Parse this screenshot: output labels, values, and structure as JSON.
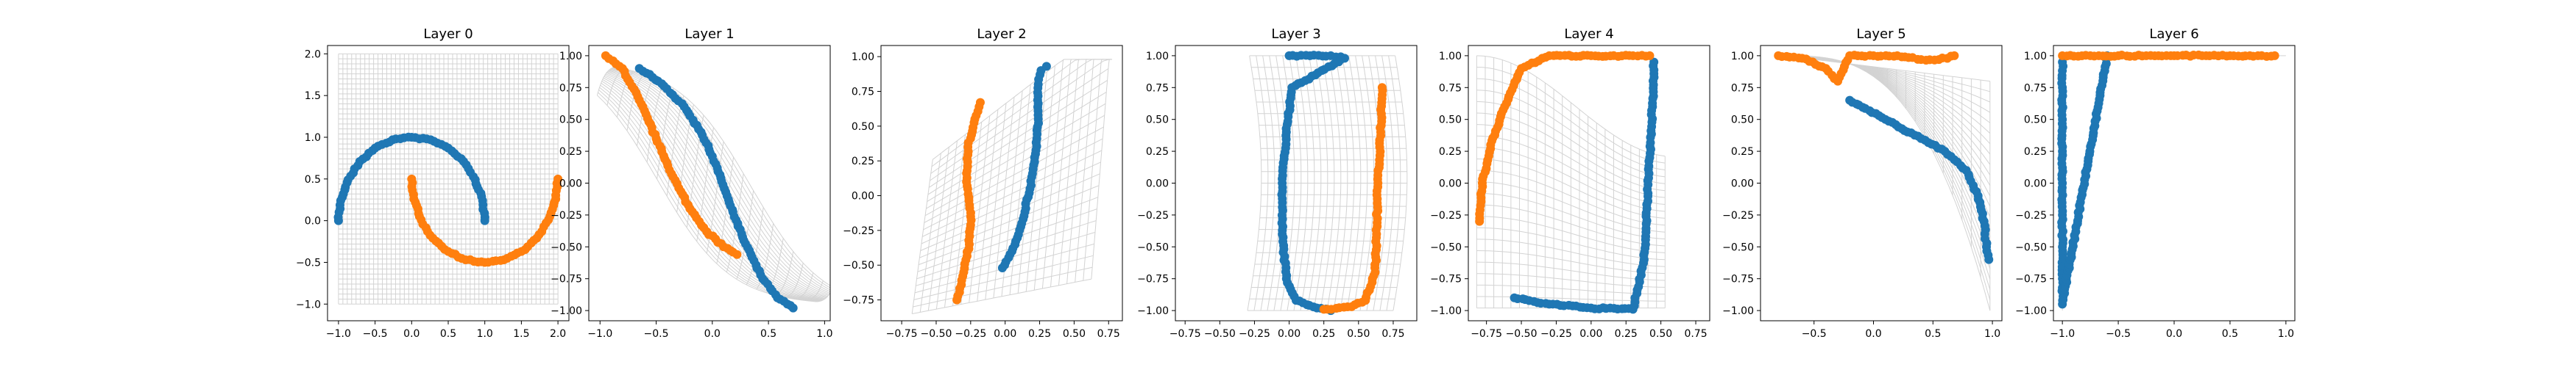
{
  "chart_data": [
    {
      "type": "scatter",
      "title": "Layer 0",
      "xlim": [
        -1.15,
        2.15
      ],
      "ylim": [
        -1.2,
        2.1
      ],
      "xticks": [
        -1.0,
        -0.5,
        0.0,
        0.5,
        1.0,
        1.5,
        2.0
      ],
      "yticks": [
        -1.0,
        -0.5,
        0.0,
        0.5,
        1.0,
        1.5,
        2.0
      ],
      "xtick_labels": [
        "−1.0",
        "−0.5",
        "0.0",
        "0.5",
        "1.0",
        "1.5",
        "2.0"
      ],
      "ytick_labels": [
        "−1.0",
        "−0.5",
        "0.0",
        "0.5",
        "1.0",
        "1.5",
        "2.0"
      ],
      "series": [
        {
          "color": "#1f77b4",
          "points": [
            [
              -1.0,
              0.0
            ],
            [
              -0.97,
              0.24
            ],
            [
              -0.87,
              0.49
            ],
            [
              -0.71,
              0.71
            ],
            [
              -0.5,
              0.87
            ],
            [
              -0.26,
              0.97
            ],
            [
              0.0,
              1.0
            ],
            [
              0.26,
              0.97
            ],
            [
              0.5,
              0.87
            ],
            [
              0.71,
              0.71
            ],
            [
              0.87,
              0.49
            ],
            [
              0.97,
              0.24
            ],
            [
              1.0,
              0.0
            ]
          ]
        },
        {
          "color": "#ff7f0e",
          "points": [
            [
              0.0,
              0.5
            ],
            [
              0.03,
              0.26
            ],
            [
              0.13,
              0.01
            ],
            [
              0.29,
              -0.21
            ],
            [
              0.5,
              -0.37
            ],
            [
              0.74,
              -0.47
            ],
            [
              1.0,
              -0.5
            ],
            [
              1.26,
              -0.47
            ],
            [
              1.5,
              -0.37
            ],
            [
              1.71,
              -0.21
            ],
            [
              1.87,
              0.01
            ],
            [
              1.97,
              0.26
            ],
            [
              2.0,
              0.5
            ]
          ]
        }
      ],
      "grid_mesh": "regular"
    },
    {
      "type": "scatter",
      "title": "Layer 1",
      "xlim": [
        -1.1,
        1.05
      ],
      "ylim": [
        -1.08,
        1.08
      ],
      "xticks": [
        -1.0,
        -0.5,
        0.0,
        0.5,
        1.0
      ],
      "yticks": [
        -1.0,
        -0.75,
        -0.5,
        -0.25,
        0.0,
        0.25,
        0.5,
        0.75,
        1.0
      ],
      "xtick_labels": [
        "−1.0",
        "−0.5",
        "0.0",
        "0.5",
        "1.0"
      ],
      "ytick_labels": [
        "−1.00",
        "−0.75",
        "−0.50",
        "−0.25",
        "0.00",
        "0.25",
        "0.50",
        "0.75",
        "1.00"
      ],
      "series": [
        {
          "color": "#1f77b4",
          "points": [
            [
              -0.65,
              0.9
            ],
            [
              -0.45,
              0.78
            ],
            [
              -0.25,
              0.6
            ],
            [
              -0.1,
              0.4
            ],
            [
              0.03,
              0.15
            ],
            [
              0.15,
              -0.15
            ],
            [
              0.28,
              -0.45
            ],
            [
              0.43,
              -0.72
            ],
            [
              0.58,
              -0.9
            ],
            [
              0.72,
              -0.98
            ]
          ]
        },
        {
          "color": "#ff7f0e",
          "points": [
            [
              -0.95,
              1.0
            ],
            [
              -0.8,
              0.9
            ],
            [
              -0.65,
              0.65
            ],
            [
              -0.5,
              0.35
            ],
            [
              -0.35,
              0.05
            ],
            [
              -0.2,
              -0.2
            ],
            [
              -0.05,
              -0.38
            ],
            [
              0.1,
              -0.5
            ],
            [
              0.22,
              -0.56
            ]
          ]
        }
      ],
      "grid_mesh": "warped"
    },
    {
      "type": "scatter",
      "title": "Layer 2",
      "xlim": [
        -0.9,
        0.85
      ],
      "ylim": [
        -0.9,
        1.08
      ],
      "xticks": [
        -0.75,
        -0.5,
        -0.25,
        0.0,
        0.25,
        0.5,
        0.75
      ],
      "yticks": [
        -0.75,
        -0.5,
        -0.25,
        0.0,
        0.25,
        0.5,
        0.75,
        1.0
      ],
      "xtick_labels": [
        "−0.75",
        "−0.50",
        "−0.25",
        "0.00",
        "0.25",
        "0.50",
        "0.75"
      ],
      "ytick_labels": [
        "−0.75",
        "−0.50",
        "−0.25",
        "0.00",
        "0.25",
        "0.50",
        "0.75",
        "1.00"
      ],
      "series": [
        {
          "color": "#1f77b4",
          "points": [
            [
              -0.02,
              -0.52
            ],
            [
              0.05,
              -0.4
            ],
            [
              0.12,
              -0.2
            ],
            [
              0.18,
              0.05
            ],
            [
              0.22,
              0.3
            ],
            [
              0.24,
              0.55
            ],
            [
              0.24,
              0.8
            ],
            [
              0.26,
              0.9
            ],
            [
              0.3,
              0.93
            ]
          ]
        },
        {
          "color": "#ff7f0e",
          "points": [
            [
              -0.18,
              0.67
            ],
            [
              -0.22,
              0.55
            ],
            [
              -0.27,
              0.35
            ],
            [
              -0.28,
              0.1
            ],
            [
              -0.25,
              -0.15
            ],
            [
              -0.26,
              -0.35
            ],
            [
              -0.3,
              -0.55
            ],
            [
              -0.35,
              -0.75
            ]
          ]
        }
      ],
      "grid_mesh": "warped"
    },
    {
      "type": "scatter",
      "title": "Layer 3",
      "xlim": [
        -0.82,
        0.92
      ],
      "ylim": [
        -1.08,
        1.08
      ],
      "xticks": [
        -0.75,
        -0.5,
        -0.25,
        0.0,
        0.25,
        0.5,
        0.75
      ],
      "yticks": [
        -1.0,
        -0.75,
        -0.5,
        -0.25,
        0.0,
        0.25,
        0.5,
        0.75,
        1.0
      ],
      "xtick_labels": [
        "−0.75",
        "−0.50",
        "−0.25",
        "0.00",
        "0.25",
        "0.50",
        "0.75"
      ],
      "ytick_labels": [
        "−1.00",
        "−0.75",
        "−0.50",
        "−0.25",
        "0.00",
        "0.25",
        "0.50",
        "0.75",
        "1.00"
      ],
      "series": [
        {
          "color": "#1f77b4",
          "points": [
            [
              0.0,
              1.0
            ],
            [
              0.15,
              1.0
            ],
            [
              0.3,
              1.0
            ],
            [
              0.4,
              0.98
            ],
            [
              0.02,
              0.75
            ],
            [
              -0.02,
              0.4
            ],
            [
              -0.05,
              0.0
            ],
            [
              -0.05,
              -0.4
            ],
            [
              -0.02,
              -0.75
            ],
            [
              0.05,
              -0.92
            ],
            [
              0.2,
              -0.98
            ],
            [
              0.3,
              -1.0
            ]
          ]
        },
        {
          "color": "#ff7f0e",
          "points": [
            [
              0.25,
              -0.99
            ],
            [
              0.45,
              -0.97
            ],
            [
              0.55,
              -0.92
            ],
            [
              0.62,
              -0.7
            ],
            [
              0.63,
              -0.4
            ],
            [
              0.64,
              0.0
            ],
            [
              0.66,
              0.4
            ],
            [
              0.67,
              0.75
            ]
          ]
        }
      ],
      "grid_mesh": "warped"
    },
    {
      "type": "scatter",
      "title": "Layer 4",
      "xlim": [
        -0.88,
        0.85
      ],
      "ylim": [
        -1.08,
        1.08
      ],
      "xticks": [
        -0.75,
        -0.5,
        -0.25,
        0.0,
        0.25,
        0.5,
        0.75
      ],
      "yticks": [
        -1.0,
        -0.75,
        -0.5,
        -0.25,
        0.0,
        0.25,
        0.5,
        0.75,
        1.0
      ],
      "xtick_labels": [
        "−0.75",
        "−0.50",
        "−0.25",
        "0.00",
        "0.25",
        "0.50",
        "0.75"
      ],
      "ytick_labels": [
        "−1.00",
        "−0.75",
        "−0.50",
        "−0.25",
        "0.00",
        "0.25",
        "0.50",
        "0.75",
        "1.00"
      ],
      "series": [
        {
          "color": "#1f77b4",
          "points": [
            [
              -0.55,
              -0.9
            ],
            [
              -0.3,
              -0.95
            ],
            [
              0.0,
              -0.98
            ],
            [
              0.3,
              -0.99
            ],
            [
              0.38,
              -0.6
            ],
            [
              0.4,
              -0.2
            ],
            [
              0.42,
              0.2
            ],
            [
              0.44,
              0.6
            ],
            [
              0.45,
              0.95
            ]
          ]
        },
        {
          "color": "#ff7f0e",
          "points": [
            [
              -0.8,
              -0.3
            ],
            [
              -0.78,
              0.0
            ],
            [
              -0.72,
              0.3
            ],
            [
              -0.62,
              0.6
            ],
            [
              -0.5,
              0.9
            ],
            [
              -0.3,
              1.0
            ],
            [
              0.0,
              1.0
            ],
            [
              0.3,
              1.0
            ],
            [
              0.42,
              1.0
            ]
          ]
        }
      ],
      "grid_mesh": "warped"
    },
    {
      "type": "scatter",
      "title": "Layer 5",
      "xlim": [
        -0.95,
        1.08
      ],
      "ylim": [
        -1.08,
        1.08
      ],
      "xticks": [
        -0.5,
        0.0,
        0.5,
        1.0
      ],
      "yticks": [
        -1.0,
        -0.75,
        -0.5,
        -0.25,
        0.0,
        0.25,
        0.5,
        0.75,
        1.0
      ],
      "xtick_labels": [
        "−0.5",
        "0.0",
        "0.5",
        "1.0"
      ],
      "ytick_labels": [
        "−1.00",
        "−0.75",
        "−0.50",
        "−0.25",
        "0.00",
        "0.25",
        "0.50",
        "0.75",
        "1.00"
      ],
      "series": [
        {
          "color": "#1f77b4",
          "points": [
            [
              -0.2,
              0.65
            ],
            [
              0.1,
              0.5
            ],
            [
              0.4,
              0.35
            ],
            [
              0.6,
              0.25
            ],
            [
              0.78,
              0.1
            ],
            [
              0.88,
              -0.1
            ],
            [
              0.93,
              -0.3
            ],
            [
              0.95,
              -0.5
            ],
            [
              0.97,
              -0.6
            ]
          ]
        },
        {
          "color": "#ff7f0e",
          "points": [
            [
              -0.8,
              1.0
            ],
            [
              -0.6,
              0.98
            ],
            [
              -0.4,
              0.9
            ],
            [
              -0.3,
              0.8
            ],
            [
              -0.2,
              1.0
            ],
            [
              0.0,
              1.0
            ],
            [
              0.2,
              1.0
            ],
            [
              0.4,
              0.97
            ],
            [
              0.55,
              0.97
            ],
            [
              0.68,
              1.0
            ]
          ]
        }
      ],
      "grid_mesh": "warped"
    },
    {
      "type": "scatter",
      "title": "Layer 6",
      "xlim": [
        -1.08,
        1.08
      ],
      "ylim": [
        -1.08,
        1.08
      ],
      "xticks": [
        -1.0,
        -0.5,
        0.0,
        0.5,
        1.0
      ],
      "yticks": [
        -1.0,
        -0.75,
        -0.5,
        -0.25,
        0.0,
        0.25,
        0.5,
        0.75,
        1.0
      ],
      "xtick_labels": [
        "−1.0",
        "−0.5",
        "0.0",
        "0.5",
        "1.0"
      ],
      "ytick_labels": [
        "−1.00",
        "−0.75",
        "−0.50",
        "−0.25",
        "0.00",
        "0.25",
        "0.50",
        "0.75",
        "1.00"
      ],
      "series": [
        {
          "color": "#1f77b4",
          "points": [
            [
              -1.0,
              0.95
            ],
            [
              -1.0,
              0.75
            ],
            [
              -1.0,
              0.5
            ],
            [
              -1.0,
              0.25
            ],
            [
              -1.0,
              0.0
            ],
            [
              -1.0,
              -0.25
            ],
            [
              -1.0,
              -0.5
            ],
            [
              -1.0,
              -0.75
            ],
            [
              -1.0,
              -0.95
            ],
            [
              -0.6,
              1.0
            ]
          ]
        },
        {
          "color": "#ff7f0e",
          "points": [
            [
              -1.0,
              1.0
            ],
            [
              -0.75,
              1.0
            ],
            [
              -0.5,
              1.0
            ],
            [
              -0.25,
              1.0
            ],
            [
              0.0,
              1.0
            ],
            [
              0.25,
              1.0
            ],
            [
              0.5,
              1.0
            ],
            [
              0.75,
              1.0
            ],
            [
              0.9,
              1.0
            ]
          ]
        }
      ],
      "grid_mesh": "collapsed"
    }
  ]
}
